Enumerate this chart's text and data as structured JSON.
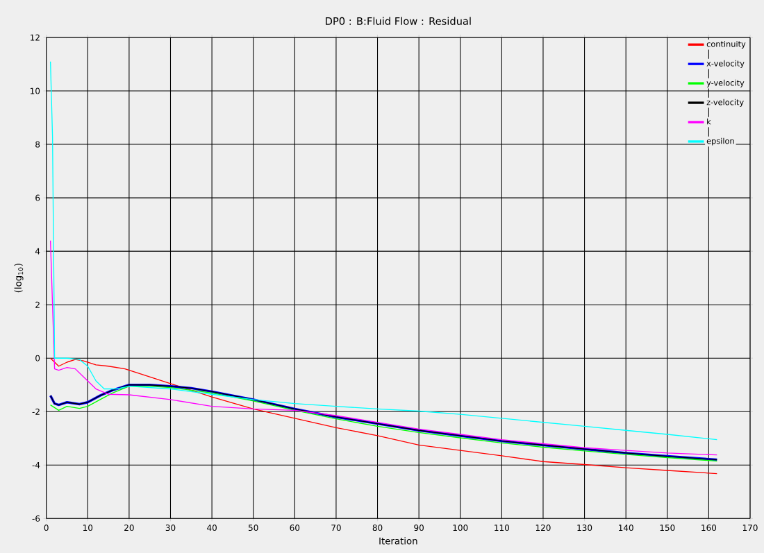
{
  "chart_data": {
    "type": "line",
    "title": "DP0 : B:Fluid Flow : Residual",
    "xlabel": "Iteration",
    "ylabel": "(log$_{10}$)",
    "xlim": [
      0,
      170
    ],
    "xticks": [
      0,
      10,
      20,
      30,
      40,
      50,
      60,
      70,
      80,
      90,
      100,
      110,
      120,
      130,
      140,
      150,
      160,
      170
    ],
    "ylim": [
      -6,
      12
    ],
    "yticks": [
      -6,
      -4,
      -2,
      0,
      2,
      4,
      6,
      8,
      10,
      12
    ],
    "grid": true,
    "legend": "top right",
    "series": [
      {
        "name": "continuity",
        "color": "#ff0000",
        "x": [
          1,
          3,
          5,
          7,
          9,
          12,
          15,
          19,
          22,
          26,
          30,
          40,
          50,
          60,
          70,
          80,
          90,
          100,
          110,
          120,
          130,
          140,
          150,
          162
        ],
        "values": [
          0,
          -0.3,
          -0.15,
          -0.05,
          -0.1,
          -0.25,
          -0.3,
          -0.4,
          -0.55,
          -0.75,
          -0.95,
          -1.45,
          -1.9,
          -2.25,
          -2.6,
          -2.9,
          -3.25,
          -3.45,
          -3.65,
          -3.87,
          -3.98,
          -4.1,
          -4.2,
          -4.32
        ]
      },
      {
        "name": "x-velocity",
        "color": "#0000ff",
        "x": [
          1,
          2,
          3,
          5,
          8,
          10,
          13,
          16,
          20,
          25,
          30,
          35,
          40,
          50,
          60,
          70,
          80,
          90,
          100,
          110,
          120,
          130,
          140,
          150,
          162
        ],
        "values": [
          -1.4,
          -1.7,
          -1.75,
          -1.65,
          -1.72,
          -1.65,
          -1.4,
          -1.2,
          -1.0,
          -1.0,
          -1.05,
          -1.12,
          -1.25,
          -1.55,
          -1.9,
          -2.2,
          -2.45,
          -2.7,
          -2.9,
          -3.1,
          -3.25,
          -3.4,
          -3.55,
          -3.67,
          -3.8
        ]
      },
      {
        "name": "y-velocity",
        "color": "#00ff00",
        "x": [
          1,
          3,
          5,
          8,
          10,
          13,
          16,
          20,
          25,
          30,
          40,
          50,
          60,
          70,
          80,
          90,
          100,
          110,
          120,
          130,
          140,
          150,
          162
        ],
        "values": [
          -1.75,
          -1.95,
          -1.8,
          -1.88,
          -1.8,
          -1.55,
          -1.3,
          -1.05,
          -1.05,
          -1.1,
          -1.3,
          -1.6,
          -1.95,
          -2.27,
          -2.55,
          -2.78,
          -2.98,
          -3.17,
          -3.33,
          -3.47,
          -3.6,
          -3.72,
          -3.85
        ]
      },
      {
        "name": "z-velocity",
        "color": "#000000",
        "x": [
          1,
          2,
          3,
          5,
          8,
          10,
          13,
          16,
          20,
          25,
          30,
          35,
          40,
          50,
          60,
          70,
          80,
          90,
          100,
          110,
          120,
          130,
          140,
          150,
          162
        ],
        "values": [
          -1.4,
          -1.7,
          -1.75,
          -1.65,
          -1.72,
          -1.65,
          -1.4,
          -1.2,
          -1.0,
          -1.0,
          -1.05,
          -1.12,
          -1.25,
          -1.55,
          -1.9,
          -2.2,
          -2.45,
          -2.7,
          -2.9,
          -3.1,
          -3.25,
          -3.4,
          -3.55,
          -3.67,
          -3.8
        ]
      },
      {
        "name": "k",
        "color": "#ff00ff",
        "x": [
          1,
          2,
          3,
          5,
          7,
          9,
          12,
          15,
          20,
          30,
          40,
          50,
          60,
          70,
          80,
          90,
          100,
          110,
          120,
          130,
          140,
          150,
          162
        ],
        "values": [
          4.4,
          -0.4,
          -0.45,
          -0.35,
          -0.4,
          -0.7,
          -1.15,
          -1.35,
          -1.37,
          -1.55,
          -1.8,
          -1.9,
          -1.95,
          -2.15,
          -2.4,
          -2.65,
          -2.85,
          -3.05,
          -3.2,
          -3.35,
          -3.45,
          -3.55,
          -3.62
        ]
      },
      {
        "name": "epsilon",
        "color": "#00ffff",
        "x": [
          1,
          1.5,
          2,
          5,
          8,
          10,
          12,
          14,
          17,
          20,
          30,
          40,
          50,
          60,
          70,
          80,
          90,
          100,
          110,
          120,
          130,
          140,
          150,
          162
        ],
        "values": [
          11.1,
          8.3,
          0,
          0,
          -0.05,
          -0.3,
          -0.85,
          -1.15,
          -1.15,
          -1.05,
          -1.15,
          -1.35,
          -1.55,
          -1.7,
          -1.8,
          -1.9,
          -1.98,
          -2.1,
          -2.25,
          -2.4,
          -2.55,
          -2.7,
          -2.85,
          -3.05
        ]
      }
    ]
  }
}
